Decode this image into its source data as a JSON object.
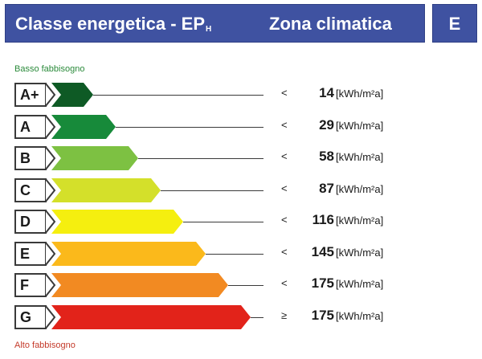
{
  "header": {
    "title_main": "Classe energetica - EP",
    "title_sub": "H",
    "zone_label": "Zona climatica",
    "zone_value": "E",
    "color": "#3f52a1"
  },
  "labels": {
    "low": "Basso fabbisogno",
    "high": "Alto fabbisogno"
  },
  "unit": "[kWh/m²a]",
  "classes": [
    {
      "label": "A+",
      "comparator": "<",
      "value": "14",
      "color": "#0e5a25"
    },
    {
      "label": "A",
      "comparator": "<",
      "value": "29",
      "color": "#178a3a"
    },
    {
      "label": "B",
      "comparator": "<",
      "value": "58",
      "color": "#7dc142"
    },
    {
      "label": "C",
      "comparator": "<",
      "value": "87",
      "color": "#d4e02a"
    },
    {
      "label": "D",
      "comparator": "<",
      "value": "116",
      "color": "#f5ef0f"
    },
    {
      "label": "E",
      "comparator": "<",
      "value": "145",
      "color": "#fbb91b"
    },
    {
      "label": "F",
      "comparator": "<",
      "value": "175",
      "color": "#f28a22"
    },
    {
      "label": "G",
      "comparator": "≥",
      "value": "175",
      "color": "#e2231a"
    }
  ]
}
